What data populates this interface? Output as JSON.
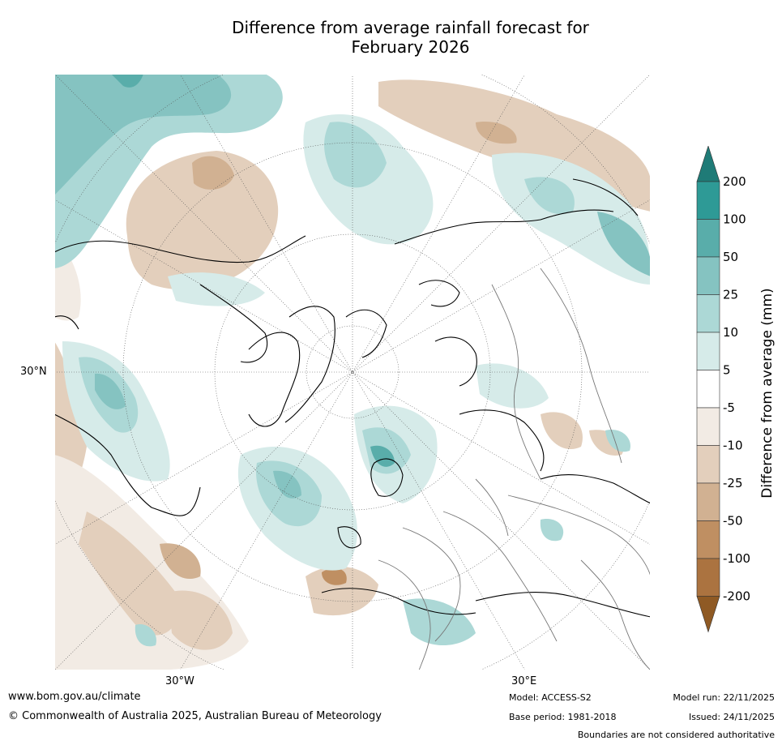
{
  "title_line1": "Difference from average rainfall forecast for",
  "title_line2": "February 2026",
  "coord_labels": {
    "lat_30n": "30°N",
    "lon_30w": "30°W",
    "lon_30e": "30°E"
  },
  "colorbar": {
    "title": "Difference from average (mm)",
    "tick_labels": [
      "200",
      "100",
      "50",
      "25",
      "10",
      "5",
      "-5",
      "-10",
      "-25",
      "-50",
      "-100",
      "-200"
    ],
    "bands": [
      {
        "range": "> 200",
        "color": "#1f7b77"
      },
      {
        "range": "100 to 200",
        "color": "#2e9a96"
      },
      {
        "range": "50 to 100",
        "color": "#59adaa"
      },
      {
        "range": "25 to 50",
        "color": "#85c3c1"
      },
      {
        "range": "10 to 25",
        "color": "#acd8d6"
      },
      {
        "range": "5 to 10",
        "color": "#d6ebe9"
      },
      {
        "range": "-5 to 5",
        "color": "#ffffff"
      },
      {
        "range": "-10 to -5",
        "color": "#f2ebe4"
      },
      {
        "range": "-25 to -10",
        "color": "#e3cfbc"
      },
      {
        "range": "-50 to -25",
        "color": "#d1b192"
      },
      {
        "range": "-100 to -50",
        "color": "#bf8f62"
      },
      {
        "range": "-200 to -100",
        "color": "#ab7340"
      },
      {
        "range": "< -200",
        "color": "#8f5a24"
      }
    ]
  },
  "footer": {
    "website": "www.bom.gov.au/climate",
    "copyright": "© Commonwealth of Australia 2025, Australian Bureau of Meteorology",
    "model": "Model: ACCESS-S2",
    "base_period": "Base period: 1981-2018",
    "model_run": "Model run: 22/11/2025",
    "issued": "Issued: 24/11/2025",
    "disclaimer": "Boundaries are not considered authoritative"
  }
}
